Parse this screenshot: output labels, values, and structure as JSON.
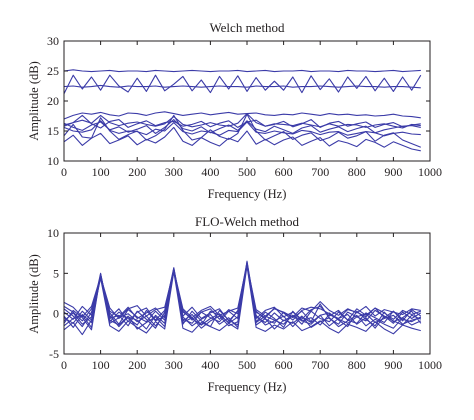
{
  "chart_data": [
    {
      "type": "line",
      "title": "Welch method",
      "xlabel": "Frequency (Hz)",
      "ylabel": "Amplitude (dB)",
      "xlim": [
        0,
        1000
      ],
      "ylim": [
        10,
        30
      ],
      "xticks": [
        0,
        100,
        200,
        300,
        400,
        500,
        600,
        700,
        800,
        900,
        1000
      ],
      "yticks": [
        10,
        15,
        20,
        25,
        30
      ],
      "grid": false,
      "line_color": "#3b3ba8",
      "x": [
        0,
        25,
        50,
        75,
        100,
        125,
        150,
        175,
        200,
        225,
        250,
        275,
        300,
        325,
        350,
        375,
        400,
        425,
        450,
        475,
        500,
        525,
        550,
        575,
        600,
        625,
        650,
        675,
        700,
        725,
        750,
        775,
        800,
        825,
        850,
        875,
        900,
        925,
        950,
        975
      ],
      "series": [
        {
          "values": [
            25.0,
            25.2,
            25.0,
            24.9,
            25.0,
            25.1,
            24.9,
            25.0,
            25.0,
            24.9,
            25.1,
            25.0,
            24.9,
            25.0,
            25.1,
            25.0,
            24.9,
            25.0,
            25.0,
            25.1,
            24.9,
            25.0,
            25.1,
            24.9,
            25.0,
            25.0,
            25.1,
            24.9,
            25.0,
            25.0,
            24.9,
            25.1,
            25.0,
            25.0,
            24.9,
            25.0,
            25.1,
            24.9,
            25.0,
            25.1
          ]
        },
        {
          "values": [
            21.2,
            24.3,
            22.0,
            24.0,
            21.8,
            24.3,
            22.5,
            21.5,
            23.8,
            21.6,
            24.3,
            21.7,
            22.8,
            24.1,
            21.7,
            23.5,
            21.4,
            24.1,
            22.0,
            24.2,
            21.6,
            23.9,
            21.8,
            23.3,
            21.8,
            24.0,
            21.4,
            24.2,
            21.9,
            23.7,
            21.5,
            24.0,
            22.1,
            24.1,
            21.7,
            23.8,
            21.6,
            24.0,
            21.8,
            24.3
          ]
        },
        {
          "values": [
            22.4,
            22.5,
            22.3,
            22.4,
            22.6,
            22.4,
            22.3,
            22.5,
            22.4,
            22.4,
            22.5,
            22.3,
            22.4,
            22.5,
            22.4,
            22.3,
            22.4,
            22.5,
            22.4,
            22.4,
            22.3,
            22.5,
            22.4,
            22.4,
            22.5,
            22.3,
            22.4,
            22.4,
            22.5,
            22.4,
            22.3,
            22.4,
            22.5,
            22.4,
            22.4,
            22.3,
            22.4,
            22.4,
            22.3,
            22.2
          ]
        },
        {
          "values": [
            17.0,
            17.6,
            18.0,
            17.8,
            18.1,
            17.7,
            17.5,
            18.0,
            17.9,
            17.6,
            18.0,
            18.2,
            17.9,
            17.6,
            17.8,
            18.0,
            17.7,
            17.9,
            18.1,
            17.8,
            17.9,
            18.0,
            17.7,
            17.6,
            17.8,
            17.7,
            18.0,
            17.8,
            17.6,
            17.9,
            17.7,
            17.8,
            17.6,
            17.7,
            17.5,
            17.6,
            17.8,
            17.5,
            17.4,
            17.2
          ]
        },
        {
          "values": [
            16.0,
            16.4,
            16.8,
            16.3,
            17.6,
            16.4,
            15.9,
            16.3,
            16.5,
            16.1,
            15.8,
            16.2,
            17.4,
            16.1,
            15.7,
            16.0,
            16.4,
            16.0,
            15.8,
            16.3,
            17.9,
            16.4,
            15.8,
            16.2,
            16.1,
            15.9,
            16.3,
            16.0,
            15.7,
            16.2,
            15.8,
            16.1,
            16.0,
            15.6,
            16.0,
            16.2,
            15.8,
            15.5,
            16.1,
            15.9
          ]
        },
        {
          "values": [
            15.6,
            15.0,
            14.8,
            15.2,
            16.7,
            15.1,
            14.6,
            15.0,
            14.9,
            14.4,
            15.3,
            15.0,
            16.4,
            14.9,
            14.5,
            15.0,
            14.8,
            14.3,
            15.1,
            14.9,
            16.5,
            14.8,
            14.6,
            15.0,
            14.7,
            14.5,
            15.1,
            14.9,
            14.4,
            14.8,
            14.9,
            14.3,
            14.6,
            14.9,
            14.7,
            14.2,
            14.6,
            14.8,
            14.5,
            14.4
          ]
        },
        {
          "values": [
            14.2,
            16.1,
            14.0,
            13.8,
            17.2,
            15.0,
            13.6,
            14.4,
            15.0,
            13.5,
            14.2,
            15.3,
            17.6,
            15.1,
            13.5,
            13.9,
            15.2,
            14.1,
            13.6,
            14.6,
            17.8,
            15.0,
            13.5,
            14.2,
            14.9,
            13.6,
            14.3,
            14.7,
            13.4,
            13.9,
            14.8,
            13.8,
            14.2,
            14.9,
            13.3,
            14.3,
            14.7,
            13.5,
            12.9,
            12.3
          ]
        },
        {
          "values": [
            16.3,
            15.6,
            15.1,
            16.0,
            16.5,
            15.2,
            15.7,
            14.8,
            15.3,
            15.9,
            14.6,
            15.6,
            16.9,
            15.4,
            15.0,
            15.7,
            14.7,
            15.4,
            16.0,
            15.1,
            16.7,
            15.3,
            14.9,
            15.8,
            15.2,
            14.6,
            15.5,
            15.9,
            14.8,
            15.3,
            15.7,
            14.9,
            15.4,
            15.8,
            14.7,
            15.2,
            15.5,
            15.8,
            15.9,
            15.6
          ]
        },
        {
          "values": [
            15.8,
            16.4,
            17.6,
            16.2,
            15.5,
            16.6,
            16.9,
            15.6,
            16.2,
            16.7,
            15.9,
            16.4,
            16.6,
            15.8,
            16.1,
            16.6,
            15.7,
            16.3,
            16.7,
            15.6,
            16.5,
            16.8,
            15.8,
            16.1,
            16.6,
            15.7,
            16.2,
            16.9,
            15.6,
            16.3,
            16.6,
            15.8,
            16.2,
            16.5,
            15.6,
            16.1,
            16.4,
            15.7,
            16.0,
            16.2
          ]
        },
        {
          "values": [
            13.2,
            14.3,
            12.6,
            13.8,
            14.6,
            12.9,
            13.5,
            14.2,
            12.7,
            13.6,
            13.0,
            14.0,
            15.6,
            13.3,
            12.6,
            13.9,
            13.1,
            12.5,
            13.8,
            13.2,
            15.0,
            12.8,
            13.6,
            12.7,
            13.5,
            14.0,
            12.6,
            13.3,
            13.9,
            12.5,
            13.4,
            13.0,
            12.4,
            13.6,
            13.1,
            12.3,
            13.2,
            12.6,
            12.0,
            11.7
          ]
        }
      ]
    },
    {
      "type": "line",
      "title": "FLO-Welch method",
      "xlabel": "Frequency (Hz)",
      "ylabel": "Amplitude (dB)",
      "xlim": [
        0,
        1000
      ],
      "ylim": [
        -5,
        10
      ],
      "xticks": [
        0,
        100,
        200,
        300,
        400,
        500,
        600,
        700,
        800,
        900,
        1000
      ],
      "yticks": [
        -5,
        0,
        5,
        10
      ],
      "grid": false,
      "line_color": "#3b3ba8",
      "x": [
        0,
        25,
        50,
        75,
        100,
        125,
        150,
        175,
        200,
        225,
        250,
        275,
        300,
        325,
        350,
        375,
        400,
        425,
        450,
        475,
        500,
        525,
        550,
        575,
        600,
        625,
        650,
        675,
        700,
        725,
        750,
        775,
        800,
        825,
        850,
        875,
        900,
        925,
        950,
        975
      ],
      "series": [
        {
          "values": [
            -0.5,
            -1.2,
            0.3,
            -0.8,
            4.8,
            -1.0,
            0.2,
            -0.6,
            -1.4,
            0.4,
            -0.9,
            -0.3,
            5.6,
            -0.7,
            -1.2,
            0.2,
            -0.5,
            -1.0,
            0.3,
            -0.6,
            6.3,
            -0.4,
            -1.1,
            0.1,
            -0.9,
            -0.2,
            -1.3,
            0.3,
            -0.6,
            -1.0,
            0.2,
            -0.8,
            -1.2,
            0.1,
            -0.5,
            -1.1,
            0.3,
            -0.7,
            -1.0,
            -0.4
          ]
        },
        {
          "values": [
            0.6,
            -0.3,
            -1.6,
            0.2,
            4.5,
            0.1,
            -1.3,
            0.5,
            -0.4,
            -1.0,
            0.3,
            -0.8,
            5.3,
            0.2,
            -0.6,
            -1.4,
            0.3,
            -0.2,
            -1.1,
            0.4,
            6.0,
            0.3,
            -0.7,
            -1.2,
            0.2,
            -0.5,
            0.3,
            -1.0,
            1.2,
            -0.6,
            -1.3,
            0.2,
            -0.4,
            -0.9,
            0.4,
            -0.3,
            -1.2,
            0.2,
            -0.6,
            0.1
          ]
        },
        {
          "values": [
            -1.2,
            0.4,
            -0.5,
            -2.0,
            4.9,
            -0.6,
            -0.2,
            -1.5,
            0.3,
            -0.7,
            -1.8,
            0.2,
            5.5,
            -1.3,
            0.3,
            -0.9,
            -1.6,
            0.4,
            -0.8,
            -1.4,
            6.2,
            -1.0,
            0.2,
            -0.6,
            -1.7,
            0.3,
            -0.9,
            -1.3,
            -0.2,
            0.1,
            -0.8,
            -1.6,
            0.3,
            -0.7,
            -1.5,
            0.2,
            -1.0,
            -0.5,
            0.3,
            -1.2
          ]
        },
        {
          "values": [
            1.4,
            0.8,
            -0.4,
            0.9,
            4.6,
            0.7,
            -0.6,
            0.6,
            1.0,
            -0.3,
            0.5,
            0.8,
            5.4,
            0.6,
            -0.5,
            0.4,
            0.9,
            -0.2,
            0.3,
            0.7,
            6.1,
            0.5,
            -0.3,
            0.6,
            0.2,
            -0.4,
            0.7,
            0.3,
            1.5,
            0.4,
            -0.2,
            0.6,
            0.1,
            0.9,
            -0.3,
            0.5,
            0.2,
            -0.1,
            0.6,
            0.4
          ]
        },
        {
          "values": [
            -2.0,
            -1.1,
            -2.6,
            -0.8,
            4.4,
            -1.5,
            -2.2,
            -0.9,
            -1.7,
            -2.4,
            -1.0,
            -1.9,
            5.2,
            -1.8,
            -2.3,
            -1.1,
            -1.6,
            -2.1,
            -1.2,
            -1.9,
            5.9,
            -1.7,
            -2.2,
            -1.4,
            -1.9,
            -1.0,
            -2.1,
            -1.6,
            -0.9,
            -1.8,
            -2.4,
            -1.3,
            -1.7,
            -2.2,
            -1.0,
            -1.9,
            -2.5,
            -1.4,
            -1.8,
            -2.1
          ]
        },
        {
          "values": [
            0.2,
            -0.7,
            0.9,
            -0.2,
            5.0,
            -0.5,
            0.6,
            -1.0,
            0.2,
            0.7,
            -0.8,
            0.4,
            5.7,
            -0.3,
            0.8,
            -0.6,
            0.1,
            0.6,
            -0.9,
            0.3,
            6.4,
            -0.6,
            0.4,
            0.8,
            -0.4,
            0.2,
            -0.7,
            0.5,
            0.9,
            -0.3,
            0.4,
            -0.8,
            0.6,
            -0.2,
            0.7,
            -0.5,
            0.3,
            -0.9,
            0.5,
            -0.3
          ]
        },
        {
          "values": [
            -0.9,
            0.1,
            -1.3,
            -0.4,
            4.7,
            -1.2,
            -0.5,
            0.0,
            -1.0,
            -0.3,
            -1.5,
            -0.2,
            5.5,
            -0.9,
            -0.1,
            -1.4,
            -0.6,
            0.0,
            -1.2,
            -0.4,
            6.2,
            -1.1,
            -0.3,
            -0.8,
            -1.3,
            -0.2,
            -0.9,
            -0.5,
            -1.4,
            -0.1,
            -0.7,
            -1.2,
            -0.4,
            0.0,
            -1.1,
            -0.6,
            -0.2,
            -1.3,
            -0.8,
            -0.5
          ]
        },
        {
          "values": [
            -0.3,
            -1.7,
            -0.1,
            -1.1,
            4.8,
            -0.2,
            -1.6,
            -0.4,
            -0.8,
            -1.9,
            -0.2,
            -1.2,
            5.6,
            -0.4,
            -1.5,
            -0.7,
            -0.1,
            -1.3,
            -0.5,
            -1.7,
            6.5,
            -0.2,
            -1.4,
            -0.9,
            -0.3,
            -1.6,
            -0.4,
            -1.1,
            -0.2,
            -1.5,
            -0.6,
            -0.1,
            -1.3,
            -0.5,
            -1.8,
            -0.3,
            -0.9,
            -1.4,
            -0.2,
            -0.7
          ]
        },
        {
          "values": [
            0.9,
            0.2,
            -0.9,
            0.6,
            4.5,
            0.3,
            -0.4,
            0.8,
            -0.6,
            0.1,
            0.7,
            -0.5,
            5.3,
            0.4,
            -0.8,
            0.2,
            0.6,
            -0.7,
            0.5,
            0.0,
            6.0,
            0.2,
            -0.5,
            0.7,
            0.1,
            -0.8,
            0.4,
            0.8,
            0.6,
            0.0,
            -0.6,
            0.5,
            0.2,
            -0.4,
            0.7,
            0.1,
            -0.7,
            0.4,
            -0.1,
            0.3
          ]
        },
        {
          "values": [
            -1.5,
            -0.6,
            -0.2,
            -1.7,
            4.9,
            -0.8,
            -1.4,
            -0.3,
            -1.9,
            -1.1,
            -0.4,
            -1.6,
            5.4,
            -1.1,
            -0.5,
            -1.8,
            -0.9,
            -0.3,
            -1.5,
            -1.0,
            6.1,
            -1.4,
            -0.6,
            -1.9,
            -0.8,
            -1.2,
            -0.3,
            -1.7,
            -1.0,
            -0.5,
            -1.6,
            -0.9,
            -0.2,
            -1.5,
            -0.7,
            -1.3,
            -1.8,
            -0.5,
            -1.4,
            -0.9
          ]
        }
      ]
    }
  ]
}
